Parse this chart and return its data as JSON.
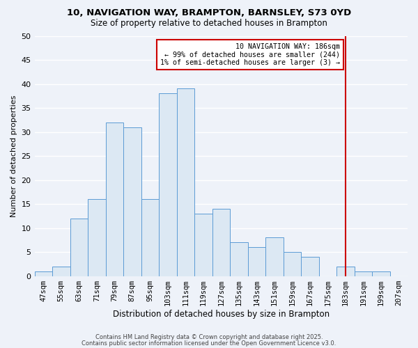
{
  "title": "10, NAVIGATION WAY, BRAMPTON, BARNSLEY, S73 0YD",
  "subtitle": "Size of property relative to detached houses in Brampton",
  "xlabel": "Distribution of detached houses by size in Brampton",
  "ylabel": "Number of detached properties",
  "bar_labels": [
    "47sqm",
    "55sqm",
    "63sqm",
    "71sqm",
    "79sqm",
    "87sqm",
    "95sqm",
    "103sqm",
    "111sqm",
    "119sqm",
    "127sqm",
    "135sqm",
    "143sqm",
    "151sqm",
    "159sqm",
    "167sqm",
    "175sqm",
    "183sqm",
    "191sqm",
    "199sqm",
    "207sqm"
  ],
  "bar_values": [
    1,
    2,
    12,
    16,
    32,
    31,
    16,
    38,
    39,
    13,
    14,
    7,
    6,
    8,
    5,
    4,
    0,
    2,
    1,
    1,
    0
  ],
  "bar_color": "#dce8f3",
  "bar_edge_color": "#5b9bd5",
  "background_color": "#eef2f9",
  "grid_color": "#ffffff",
  "ylim": [
    0,
    50
  ],
  "yticks": [
    0,
    5,
    10,
    15,
    20,
    25,
    30,
    35,
    40,
    45,
    50
  ],
  "vline_x_index": 17,
  "vline_color": "#cc0000",
  "annotation_text": "10 NAVIGATION WAY: 186sqm\n← 99% of detached houses are smaller (244)\n1% of semi-detached houses are larger (3) →",
  "annotation_box_color": "#cc0000",
  "footer1": "Contains HM Land Registry data © Crown copyright and database right 2025.",
  "footer2": "Contains public sector information licensed under the Open Government Licence v3.0."
}
